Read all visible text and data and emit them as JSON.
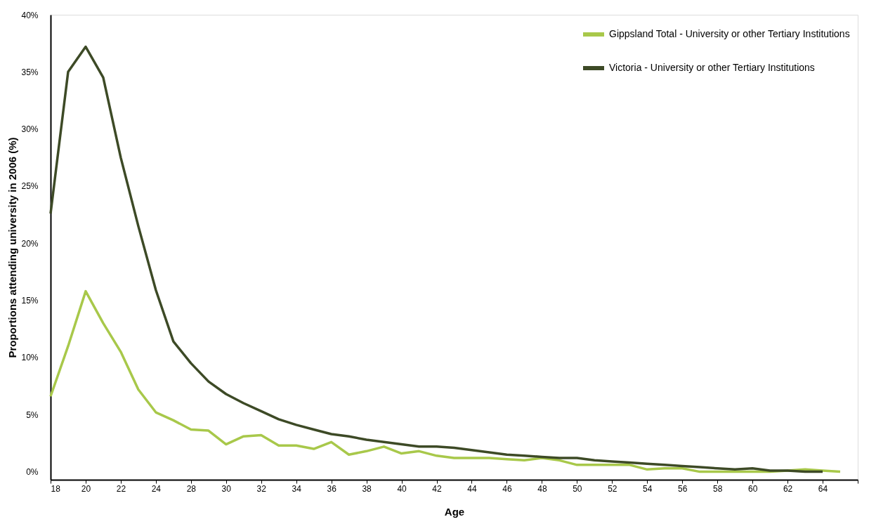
{
  "chart_data": {
    "type": "line",
    "xlabel": "Age",
    "ylabel": "Proportions attending university in 2006 (%)",
    "categories": [
      "18",
      null,
      "20",
      null,
      "22",
      null,
      "24",
      null,
      "28",
      null,
      "30",
      null,
      "32",
      null,
      "34",
      null,
      "36",
      null,
      "38",
      null,
      "40",
      null,
      "42",
      null,
      "44",
      null,
      "46",
      null,
      "48",
      null,
      "50",
      null,
      "52",
      null,
      "54",
      null,
      "56",
      null,
      "58",
      null,
      "60",
      null,
      "62",
      null,
      "64",
      null,
      null
    ],
    "series": [
      {
        "name": "Gippsland Total - University or other Tertiary Institutions",
        "color": "#a8c84a",
        "values": [
          6.6,
          11.0,
          15.8,
          13.0,
          10.5,
          7.2,
          5.2,
          4.5,
          3.7,
          3.6,
          2.4,
          3.1,
          3.2,
          2.3,
          2.3,
          2.0,
          2.6,
          1.5,
          1.8,
          2.2,
          1.6,
          1.8,
          1.4,
          1.2,
          1.2,
          1.2,
          1.1,
          1.0,
          1.2,
          1.0,
          0.6,
          0.6,
          0.6,
          0.6,
          0.2,
          0.3,
          0.3,
          0.0,
          0.0,
          0.0,
          0.0,
          0.0,
          0.1,
          0.2,
          0.1,
          0.0,
          null
        ]
      },
      {
        "name": "Victoria - University or other Tertiary Institutions",
        "color": "#3d4a26",
        "values": [
          22.6,
          35.0,
          37.2,
          34.5,
          27.5,
          21.5,
          15.9,
          11.4,
          9.5,
          7.9,
          6.8,
          6.0,
          5.3,
          4.6,
          4.1,
          3.7,
          3.3,
          3.1,
          2.8,
          2.6,
          2.4,
          2.2,
          2.2,
          2.1,
          1.9,
          1.7,
          1.5,
          1.4,
          1.3,
          1.2,
          1.2,
          1.0,
          0.9,
          0.8,
          0.7,
          0.6,
          0.5,
          0.4,
          0.3,
          0.2,
          0.3,
          0.1,
          0.1,
          0.0,
          0.0,
          null,
          null
        ]
      }
    ],
    "ylim": [
      -0.7,
      40
    ],
    "yticks": [
      {
        "value": 0,
        "label": "0%"
      },
      {
        "value": 5,
        "label": "5%"
      },
      {
        "value": 10,
        "label": "10%"
      },
      {
        "value": 15,
        "label": "15%"
      },
      {
        "value": 20,
        "label": "20%"
      },
      {
        "value": 25,
        "label": "25%"
      },
      {
        "value": 30,
        "label": "30%"
      },
      {
        "value": 35,
        "label": "35%"
      },
      {
        "value": 40,
        "label": "40%"
      }
    ],
    "grid": false,
    "legend": "top right",
    "marker": "none",
    "line_style": "solid"
  }
}
